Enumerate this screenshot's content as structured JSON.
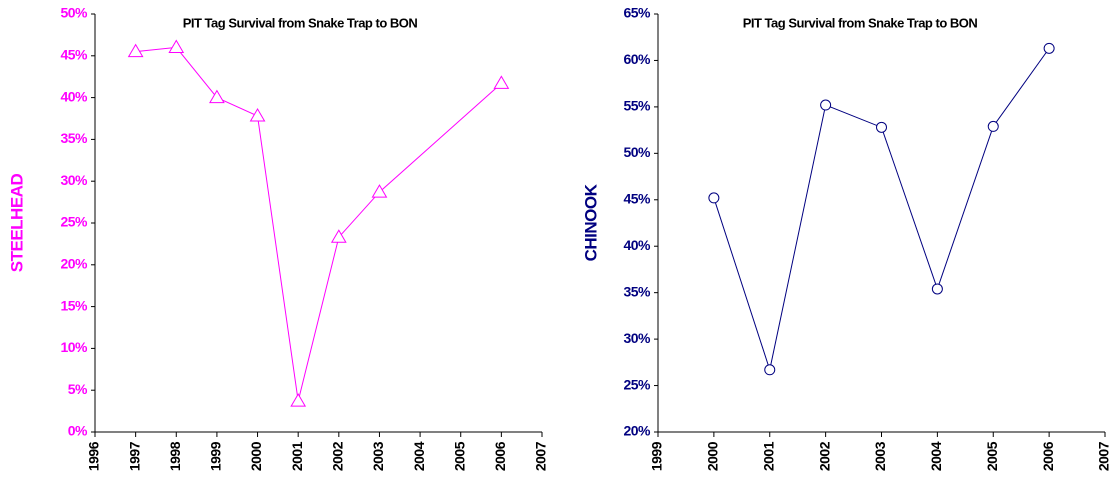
{
  "chart_data": [
    {
      "type": "line",
      "title": "PIT Tag Survival from Snake Trap to BON",
      "y_label": "STEELHEAD",
      "axis_color": "#ff00ff",
      "marker": "triangle",
      "x": [
        1997,
        1998,
        1999,
        2000,
        2001,
        2002,
        2003,
        2006
      ],
      "values": [
        45.5,
        46.0,
        40.0,
        37.8,
        3.7,
        23.3,
        28.7,
        41.7
      ],
      "color": "#ff00ff",
      "xlim": [
        1996,
        2007
      ],
      "xticks": [
        1996,
        1997,
        1998,
        1999,
        2000,
        2001,
        2002,
        2003,
        2004,
        2005,
        2006,
        2007
      ],
      "ylim": [
        0,
        50
      ],
      "yticks": [
        {
          "value": 0,
          "label": "0%"
        },
        {
          "value": 5,
          "label": "5%"
        },
        {
          "value": 10,
          "label": "10%"
        },
        {
          "value": 15,
          "label": "15%"
        },
        {
          "value": 20,
          "label": "20%"
        },
        {
          "value": 25,
          "label": "25%"
        },
        {
          "value": 30,
          "label": "30%"
        },
        {
          "value": 35,
          "label": "35%"
        },
        {
          "value": 40,
          "label": "40%"
        },
        {
          "value": 45,
          "label": "45%"
        },
        {
          "value": 50,
          "label": "50%"
        }
      ]
    },
    {
      "type": "line",
      "title": "PIT Tag Survival from Snake Trap to BON",
      "y_label": "CHINOOK",
      "axis_color": "#000080",
      "marker": "circle",
      "x": [
        2000,
        2001,
        2002,
        2003,
        2004,
        2005,
        2006
      ],
      "values": [
        45.2,
        26.7,
        55.2,
        52.8,
        35.4,
        52.9,
        61.3
      ],
      "color": "#000080",
      "xlim": [
        1999,
        2007
      ],
      "xticks": [
        1999,
        2000,
        2001,
        2002,
        2003,
        2004,
        2005,
        2006,
        2007
      ],
      "ylim": [
        20,
        65
      ],
      "yticks": [
        {
          "value": 20,
          "label": "20%"
        },
        {
          "value": 25,
          "label": "25%"
        },
        {
          "value": 30,
          "label": "30%"
        },
        {
          "value": 35,
          "label": "35%"
        },
        {
          "value": 40,
          "label": "40%"
        },
        {
          "value": 45,
          "label": "45%"
        },
        {
          "value": 50,
          "label": "50%"
        },
        {
          "value": 55,
          "label": "55%"
        },
        {
          "value": 60,
          "label": "60%"
        },
        {
          "value": 65,
          "label": "65%"
        }
      ]
    }
  ]
}
